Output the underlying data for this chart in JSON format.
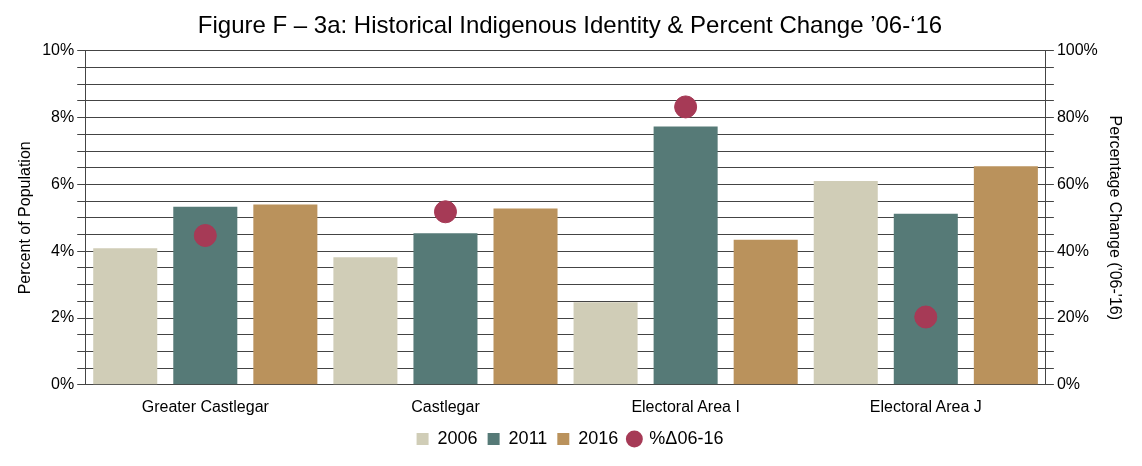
{
  "chart_data": {
    "type": "bar",
    "title": "Figure F – 3a: Historical Indigenous Identity & Percent Change ’06-‘16",
    "ylabel": "Percent of Population",
    "y2label": "Percentage Change ('06-'16)",
    "categories": [
      "Greater Castlegar",
      "Castlegar",
      "Electoral Area I",
      "Electoral Area J"
    ],
    "series": [
      {
        "name": "2006",
        "color": "#d0cdb7",
        "values": [
          4.09,
          3.82,
          2.47,
          6.1
        ]
      },
      {
        "name": "2011",
        "color": "#567a77",
        "values": [
          5.33,
          4.54,
          7.73,
          5.12
        ]
      },
      {
        "name": "2016",
        "color": "#ba925c",
        "values": [
          5.4,
          5.28,
          4.34,
          6.54
        ]
      },
      {
        "name": "%Δ06-16",
        "type": "scatter",
        "axis": "y2",
        "color": "#a63a56",
        "values": [
          44.7,
          51.8,
          83.2,
          20.3
        ]
      }
    ],
    "ylim": [
      0,
      10
    ],
    "yticks": [
      {
        "value": 0,
        "label": "0%"
      },
      {
        "value": 0.5,
        "label": null
      },
      {
        "value": 1,
        "label": null
      },
      {
        "value": 1.5,
        "label": null
      },
      {
        "value": 2,
        "label": "2%"
      },
      {
        "value": 2.5,
        "label": null
      },
      {
        "value": 3,
        "label": null
      },
      {
        "value": 3.5,
        "label": null
      },
      {
        "value": 4,
        "label": "4%"
      },
      {
        "value": 4.5,
        "label": null
      },
      {
        "value": 5,
        "label": null
      },
      {
        "value": 5.5,
        "label": null
      },
      {
        "value": 6,
        "label": "6%"
      },
      {
        "value": 6.5,
        "label": null
      },
      {
        "value": 7,
        "label": null
      },
      {
        "value": 7.5,
        "label": null
      },
      {
        "value": 8,
        "label": "8%"
      },
      {
        "value": 8.5,
        "label": null
      },
      {
        "value": 9,
        "label": null
      },
      {
        "value": 9.5,
        "label": null
      },
      {
        "value": 10,
        "label": "10%"
      }
    ],
    "y2lim": [
      0,
      100
    ],
    "y2ticks": [
      {
        "value": 0,
        "label": "0%"
      },
      {
        "value": 5,
        "label": null
      },
      {
        "value": 10,
        "label": null
      },
      {
        "value": 15,
        "label": null
      },
      {
        "value": 20,
        "label": "20%"
      },
      {
        "value": 25,
        "label": null
      },
      {
        "value": 30,
        "label": null
      },
      {
        "value": 35,
        "label": null
      },
      {
        "value": 40,
        "label": "40%"
      },
      {
        "value": 45,
        "label": null
      },
      {
        "value": 50,
        "label": null
      },
      {
        "value": 55,
        "label": null
      },
      {
        "value": 60,
        "label": "60%"
      },
      {
        "value": 65,
        "label": null
      },
      {
        "value": 70,
        "label": null
      },
      {
        "value": 75,
        "label": null
      },
      {
        "value": 80,
        "label": "80%"
      },
      {
        "value": 85,
        "label": null
      },
      {
        "value": 90,
        "label": null
      },
      {
        "value": 95,
        "label": null
      },
      {
        "value": 100,
        "label": "100%"
      }
    ],
    "grid": "y",
    "legend": "bottom",
    "marker": "circle"
  }
}
